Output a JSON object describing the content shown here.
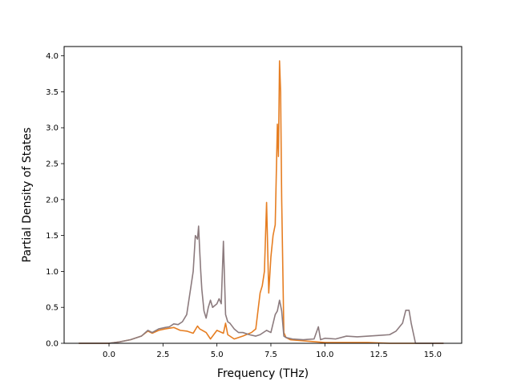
{
  "chart_data": {
    "type": "line",
    "xlabel": "Frequency (THz)",
    "ylabel": "Partial Density of States",
    "xlim": [
      -2.08,
      16.34
    ],
    "ylim": [
      0.0,
      4.13
    ],
    "xticks": [
      "0.0",
      "2.5",
      "5.0",
      "7.5",
      "10.0",
      "12.5",
      "15.0"
    ],
    "xtick_values": [
      0,
      2.5,
      5,
      7.5,
      10,
      12.5,
      15
    ],
    "yticks": [
      "0.0",
      "0.5",
      "1.0",
      "1.5",
      "2.0",
      "2.5",
      "3.0",
      "3.5",
      "4.0"
    ],
    "ytick_values": [
      0,
      0.5,
      1,
      1.5,
      2,
      2.5,
      3,
      3.5,
      4
    ],
    "grid": false,
    "series": [
      {
        "color": "#e67e22",
        "x": [
          -1.4,
          0.0,
          0.5,
          1.0,
          1.5,
          1.8,
          2.0,
          2.3,
          2.6,
          3.0,
          3.3,
          3.6,
          3.9,
          4.1,
          4.2,
          4.5,
          4.7,
          5.0,
          5.3,
          5.4,
          5.5,
          5.8,
          6.2,
          6.6,
          6.8,
          7.0,
          7.1,
          7.2,
          7.3,
          7.4,
          7.5,
          7.6,
          7.7,
          7.8,
          7.85,
          7.9,
          7.95,
          8.0,
          8.1,
          8.2,
          8.4,
          8.8,
          9.2,
          9.6,
          10.0,
          11.0,
          12.0,
          13.0,
          14.0,
          14.3,
          15.5
        ],
        "y": [
          0.0,
          0.0,
          0.02,
          0.05,
          0.1,
          0.17,
          0.14,
          0.18,
          0.2,
          0.22,
          0.18,
          0.17,
          0.14,
          0.24,
          0.2,
          0.15,
          0.06,
          0.18,
          0.14,
          0.28,
          0.12,
          0.06,
          0.1,
          0.15,
          0.2,
          0.7,
          0.8,
          1.0,
          1.96,
          0.7,
          1.2,
          1.5,
          1.65,
          3.05,
          2.6,
          3.93,
          3.5,
          2.0,
          0.15,
          0.08,
          0.05,
          0.04,
          0.03,
          0.02,
          0.01,
          0.01,
          0.01,
          0.0,
          0.0,
          0.0,
          0.0
        ]
      },
      {
        "color": "#8c7b7e",
        "x": [
          -1.4,
          0.0,
          0.5,
          1.0,
          1.5,
          1.8,
          2.0,
          2.3,
          2.6,
          2.8,
          3.0,
          3.2,
          3.4,
          3.6,
          3.8,
          3.9,
          4.0,
          4.1,
          4.15,
          4.2,
          4.25,
          4.3,
          4.4,
          4.5,
          4.6,
          4.7,
          4.8,
          5.0,
          5.1,
          5.2,
          5.3,
          5.4,
          5.5,
          5.6,
          5.8,
          6.0,
          6.2,
          6.5,
          6.8,
          7.0,
          7.3,
          7.5,
          7.7,
          7.8,
          7.9,
          8.0,
          8.1,
          8.2,
          8.5,
          9.0,
          9.5,
          9.7,
          9.8,
          10.0,
          10.5,
          11.0,
          11.5,
          12.0,
          12.5,
          13.0,
          13.3,
          13.6,
          13.75,
          13.9,
          14.0,
          14.2,
          15.5
        ],
        "y": [
          0.0,
          0.0,
          0.02,
          0.05,
          0.1,
          0.18,
          0.15,
          0.2,
          0.22,
          0.23,
          0.27,
          0.26,
          0.3,
          0.4,
          0.8,
          1.0,
          1.5,
          1.45,
          1.63,
          1.3,
          1.0,
          0.75,
          0.45,
          0.35,
          0.5,
          0.6,
          0.5,
          0.55,
          0.62,
          0.55,
          1.42,
          0.4,
          0.3,
          0.28,
          0.2,
          0.15,
          0.15,
          0.12,
          0.1,
          0.12,
          0.18,
          0.15,
          0.4,
          0.45,
          0.6,
          0.45,
          0.1,
          0.08,
          0.06,
          0.05,
          0.06,
          0.23,
          0.05,
          0.07,
          0.06,
          0.1,
          0.09,
          0.1,
          0.11,
          0.12,
          0.17,
          0.28,
          0.46,
          0.46,
          0.28,
          0.0,
          0.0
        ]
      }
    ]
  }
}
